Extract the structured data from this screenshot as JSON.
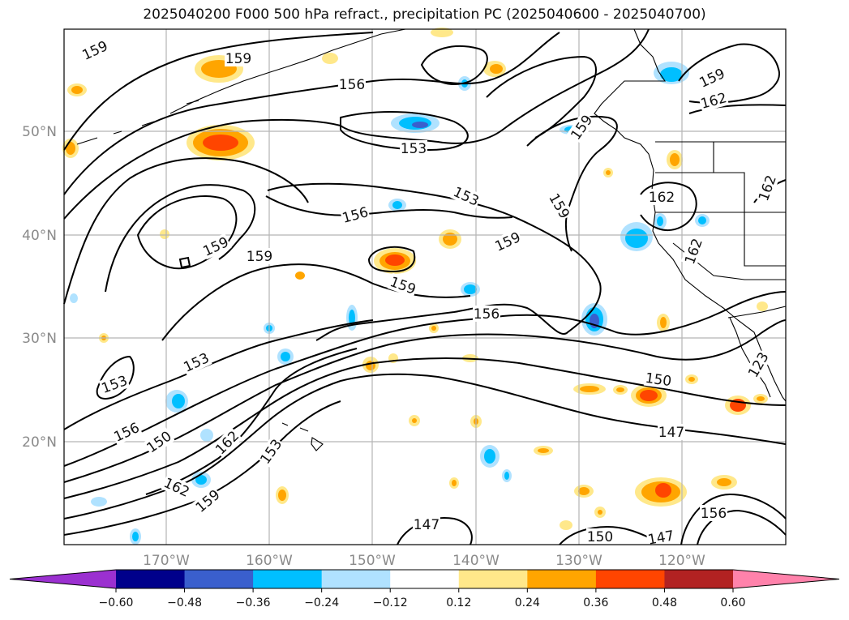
{
  "title": "2025040200 F000 500 hPa refract., precipitation PC (2025040600 - 2025040700)",
  "map": {
    "lat_labels": [
      "50°N",
      "40°N",
      "30°N",
      "20°N"
    ],
    "lon_labels": [
      "170°W",
      "160°W",
      "150°W",
      "140°W",
      "130°W",
      "120°W"
    ],
    "contour_labels": [
      {
        "text": "159",
        "rot": -25
      },
      {
        "text": "159",
        "rot": 0
      },
      {
        "text": "156",
        "rot": 0
      },
      {
        "text": "153",
        "rot": 0
      },
      {
        "text": "159",
        "rot": -25
      },
      {
        "text": "159",
        "rot": 0
      },
      {
        "text": "162",
        "rot": -15
      },
      {
        "text": "153",
        "rot": 25
      },
      {
        "text": "159",
        "rot": 60
      },
      {
        "text": "156",
        "rot": -15
      },
      {
        "text": "159",
        "rot": -55
      },
      {
        "text": "159",
        "rot": -25
      },
      {
        "text": "159",
        "rot": 20
      },
      {
        "text": "159",
        "rot": -25
      },
      {
        "text": "162",
        "rot": 0
      },
      {
        "text": "162",
        "rot": -70
      },
      {
        "text": "162",
        "rot": -70
      },
      {
        "text": "156",
        "rot": 0
      },
      {
        "text": "153",
        "rot": -25
      },
      {
        "text": "153",
        "rot": -20
      },
      {
        "text": "150",
        "rot": 8
      },
      {
        "text": "156",
        "rot": -25
      },
      {
        "text": "150",
        "rot": -35
      },
      {
        "text": "162",
        "rot": -45
      },
      {
        "text": "147",
        "rot": 0
      },
      {
        "text": "153",
        "rot": -55
      },
      {
        "text": "162",
        "rot": 25
      },
      {
        "text": "159",
        "rot": -40
      },
      {
        "text": "156",
        "rot": 0
      },
      {
        "text": "147",
        "rot": 0
      },
      {
        "text": "150",
        "rot": 0
      },
      {
        "text": "147",
        "rot": -10
      },
      {
        "text": "123",
        "rot": -60
      }
    ]
  },
  "colorbar": {
    "ticks": [
      "−0.60",
      "−0.48",
      "−0.36",
      "−0.24",
      "−0.12",
      "0.12",
      "0.24",
      "0.36",
      "0.48",
      "0.60"
    ],
    "colors": [
      "#9b30d0",
      "#00008b",
      "#3a5fcd",
      "#00bfff",
      "#b0e2ff",
      "#ffffff",
      "#ffe88a",
      "#ffa500",
      "#ff4500",
      "#b22222",
      "#ff82ab"
    ]
  }
}
